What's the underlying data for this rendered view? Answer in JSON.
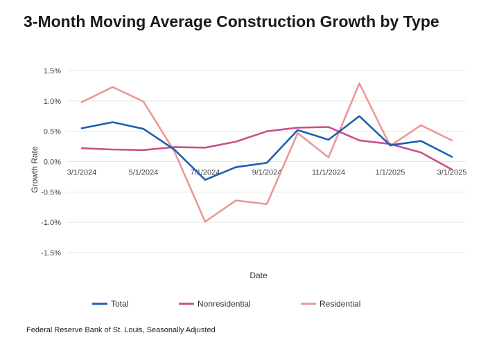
{
  "title": "3-Month Moving Average Construction Growth by Type",
  "source": "Federal Reserve Bank of St. Louis, Seasonally Adjusted",
  "chart_data": {
    "type": "line",
    "title": "3-Month Moving Average Construction Growth by Type",
    "xlabel": "Date",
    "ylabel": "Growth Rate",
    "x": [
      "2024-03-01",
      "2024-04-01",
      "2024-05-01",
      "2024-06-01",
      "2024-07-01",
      "2024-08-01",
      "2024-09-01",
      "2024-10-01",
      "2024-11-01",
      "2024-12-01",
      "2025-01-01",
      "2025-02-01",
      "2025-03-01"
    ],
    "x_tick_labels": [
      "3/1/2024",
      "5/1/2024",
      "7/1/2024",
      "9/1/2024",
      "11/1/2024",
      "1/1/2025",
      "3/1/2025"
    ],
    "y_tick_labels": [
      "1.5%",
      "1.0%",
      "0.5%",
      "0.0%",
      "-0.5%",
      "-1.0%",
      "-1.5%"
    ],
    "y_ticks": [
      1.5,
      1.0,
      0.5,
      0.0,
      -0.5,
      -1.0,
      -1.5
    ],
    "ylim": [
      -1.5,
      1.5
    ],
    "grid": "horizontal",
    "legend_position": "bottom",
    "series": [
      {
        "name": "Total",
        "color": "#1f5fb0",
        "values": [
          0.55,
          0.65,
          0.54,
          0.2,
          -0.3,
          -0.09,
          -0.02,
          0.52,
          0.36,
          0.75,
          0.27,
          0.34,
          0.08
        ]
      },
      {
        "name": "Nonresidential",
        "color": "#c9508a",
        "values": [
          0.22,
          0.2,
          0.19,
          0.24,
          0.23,
          0.33,
          0.5,
          0.56,
          0.57,
          0.35,
          0.29,
          0.15,
          -0.13
        ]
      },
      {
        "name": "Residential",
        "color": "#ec9797",
        "values": [
          0.98,
          1.23,
          0.99,
          0.17,
          -0.99,
          -0.64,
          -0.7,
          0.47,
          0.07,
          1.29,
          0.26,
          0.6,
          0.35
        ]
      }
    ]
  }
}
